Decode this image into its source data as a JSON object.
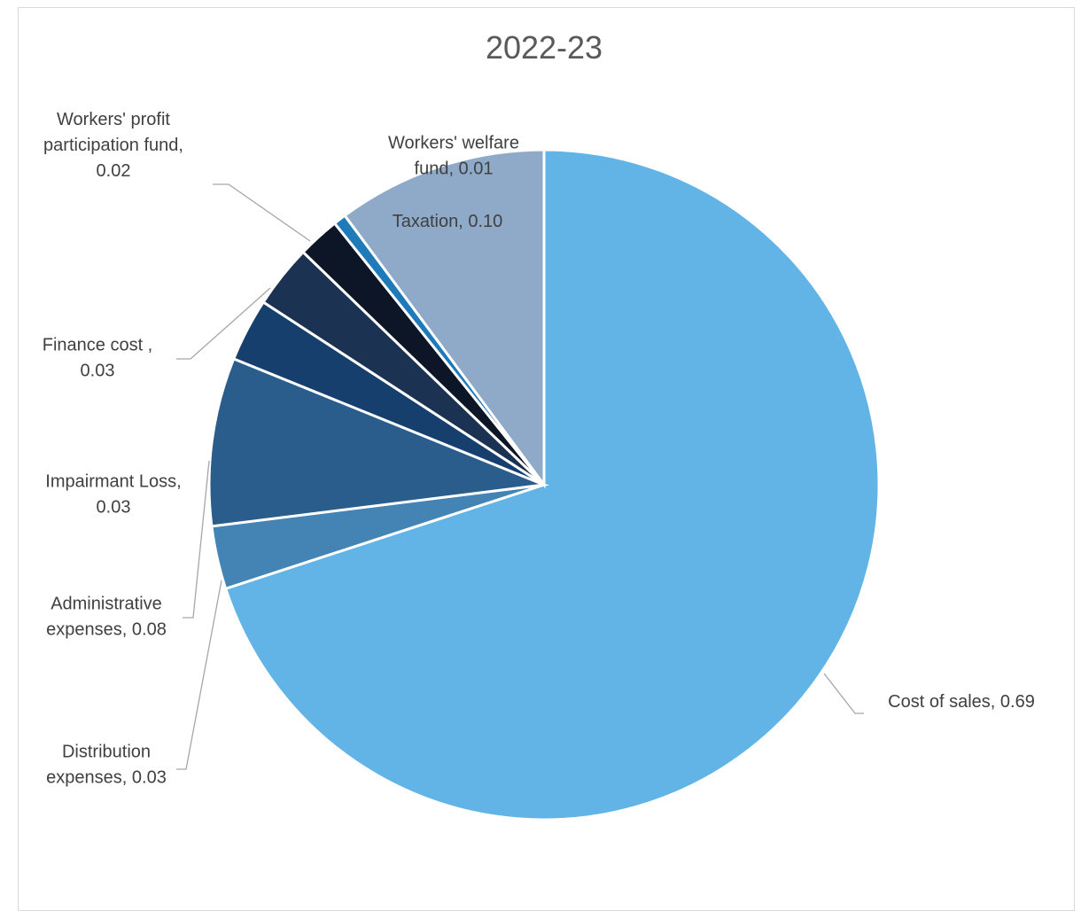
{
  "chart_data": {
    "type": "pie",
    "title": "2022-23",
    "slices": [
      {
        "name": "Cost of sales",
        "value": 0.69,
        "display": "0.69",
        "label_lines": [
          "Cost of sales,  0.69"
        ],
        "color": "#63b4e6"
      },
      {
        "name": "Distribution expenses",
        "value": 0.03,
        "display": "0.03",
        "label_lines": [
          "Distribution",
          "expenses,  0.03"
        ],
        "color": "#4484b4"
      },
      {
        "name": "Administrative expenses",
        "value": 0.08,
        "display": "0.08",
        "label_lines": [
          "Administrative",
          "expenses,  0.08"
        ],
        "color": "#2a5d8c"
      },
      {
        "name": "Impairmant Loss",
        "value": 0.03,
        "display": "0.03",
        "label_lines": [
          "Impairmant Loss,",
          "0.03"
        ],
        "color": "#173f6e"
      },
      {
        "name": "Finance cost",
        "value": 0.03,
        "display": "0.03",
        "label_lines": [
          "Finance cost ,",
          "0.03"
        ],
        "color": "#1c3253"
      },
      {
        "name": "Workers' profit participation fund",
        "value": 0.02,
        "display": "0.02",
        "label_lines": [
          "Workers' profit",
          "participation fund,",
          "0.02"
        ],
        "color": "#0c1626"
      },
      {
        "name": "Workers' welfare fund",
        "value": 0.006,
        "display": "0.01",
        "label_lines": [
          "Workers' welfare",
          "fund,  0.01"
        ],
        "color": "#1e7ab8"
      },
      {
        "name": "Taxation",
        "value": 0.1,
        "display": "0.10",
        "label_lines": [
          "Taxation,  0.10"
        ],
        "color": "#8eaac8"
      }
    ]
  }
}
